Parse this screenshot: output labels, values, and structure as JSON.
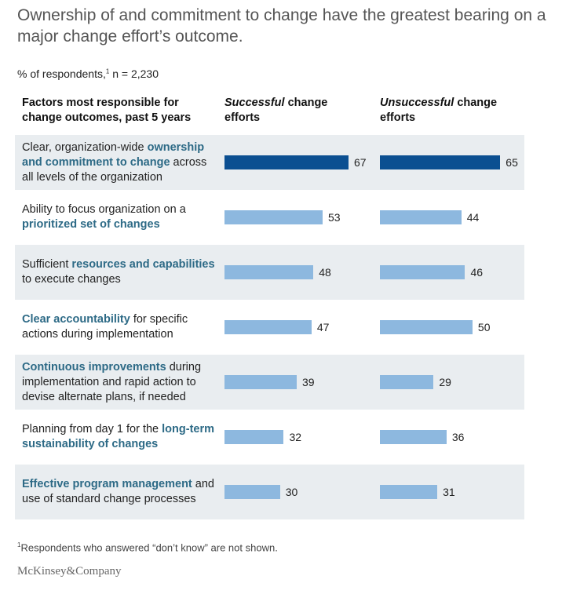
{
  "title": "Ownership of and commitment to change have the greatest bearing on a major change effort’s outcome.",
  "subtitle": {
    "text": "% of respondents,",
    "sup": "1",
    "n": " n = 2,230"
  },
  "headers": {
    "factor": "Factors most responsible for change outcomes, past 5 years",
    "successful_em": "Successful",
    "successful_rest": " change efforts",
    "unsuccessful_em": "Unsuccessful",
    "unsuccessful_rest": " change efforts"
  },
  "colors": {
    "highlight": "#0b4f91",
    "bar": "#8db8df",
    "emph_text": "#2d6a86",
    "row_shade": "#e9edf0"
  },
  "chart_data": {
    "type": "bar",
    "orientation": "horizontal",
    "categories": [
      "Clear, organization-wide ownership and commitment to change across all levels of the organization",
      "Ability to focus organization on a prioritized set of changes",
      "Sufficient resources and capabilities to execute changes",
      "Clear accountability for specific actions during implementation",
      "Continuous improvements during implementation and rapid action to devise alternate plans, if needed",
      "Planning from day 1 for the long-term sustainability of changes",
      "Effective program management and use of standard change processes"
    ],
    "category_parts": [
      [
        {
          "t": "Clear, organization-wide ",
          "e": false
        },
        {
          "t": "ownership and commitment to change",
          "e": true
        },
        {
          "t": " across all levels of the organization",
          "e": false
        }
      ],
      [
        {
          "t": "Ability to focus organization on a ",
          "e": false
        },
        {
          "t": "prioritized set of changes",
          "e": true
        }
      ],
      [
        {
          "t": "Sufficient ",
          "e": false
        },
        {
          "t": "resources and capabilities",
          "e": true
        },
        {
          "t": " to execute changes",
          "e": false
        }
      ],
      [
        {
          "t": "Clear accountability",
          "e": true
        },
        {
          "t": " for specific actions during implementation",
          "e": false
        }
      ],
      [
        {
          "t": "Continuous improvements",
          "e": true
        },
        {
          "t": " during implementation and rapid action to devise alternate plans, if needed",
          "e": false
        }
      ],
      [
        {
          "t": "Planning from day 1 for the ",
          "e": false
        },
        {
          "t": "long-term sustainability of changes",
          "e": true
        }
      ],
      [
        {
          "t": "Effective program management",
          "e": true
        },
        {
          "t": " and use of standard change processes",
          "e": false
        }
      ]
    ],
    "series": [
      {
        "name": "Successful change efforts",
        "values": [
          67,
          53,
          48,
          47,
          39,
          32,
          30
        ]
      },
      {
        "name": "Unsuccessful change efforts",
        "values": [
          65,
          44,
          46,
          50,
          29,
          36,
          31
        ]
      }
    ],
    "highlight_index": 0,
    "xlim": [
      0,
      100
    ]
  },
  "footnote": {
    "sup": "1",
    "text": "Respondents who answered “don’t know” are not shown."
  },
  "logo": "McKinsey&Company"
}
